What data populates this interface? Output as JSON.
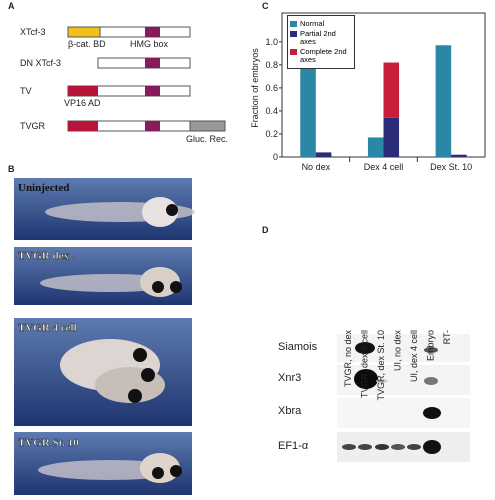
{
  "panel_a": {
    "label": "A",
    "constructs": [
      {
        "name": "XTcf-3",
        "labels": [
          "β-cat. BD",
          "HMG box"
        ]
      },
      {
        "name": "DN XTcf-3"
      },
      {
        "name": "TV",
        "labels": [
          "VP16 AD"
        ]
      },
      {
        "name": "TVGR",
        "labels": [
          "Gluc. Rec."
        ]
      }
    ]
  },
  "panel_b": {
    "label": "B",
    "images": [
      "Uninjected",
      "TVGR dex -",
      "TVGR 4 cell",
      "TVGR St. 10"
    ]
  },
  "chart_data": {
    "type": "bar",
    "panel_label": "C",
    "ylabel": "Fraction of embryos",
    "categories": [
      "No dex",
      "Dex 4 cell",
      "Dex St. 10"
    ],
    "series": [
      {
        "name": "Normal",
        "color": "#2a88a6",
        "values": [
          0.96,
          0.17,
          0.97
        ]
      },
      {
        "name": "Partial 2nd axes",
        "color": "#2b2c78",
        "values": [
          0.04,
          0.34,
          0.02
        ]
      },
      {
        "name": "Complete 2nd axes",
        "color": "#c81e3a",
        "values": [
          0,
          0.48,
          0
        ]
      }
    ],
    "ylim": [
      0,
      1.25
    ],
    "yticks": [
      0,
      0.2,
      0.4,
      0.6,
      0.8,
      {
        "value": 1,
        "label": "1.0"
      }
    ],
    "legend": "upper left"
  },
  "panel_d": {
    "label": "D",
    "lanes": [
      "TVGR, no dex",
      "TVGR, dex 4 cell",
      "TVGR, dex St. 10",
      "UI, no dex",
      "UI, dex 4 cell",
      "Embryo",
      "RT-"
    ],
    "genes": [
      "Siamois",
      "Xnr3",
      "Xbra",
      "EF1-α"
    ]
  }
}
